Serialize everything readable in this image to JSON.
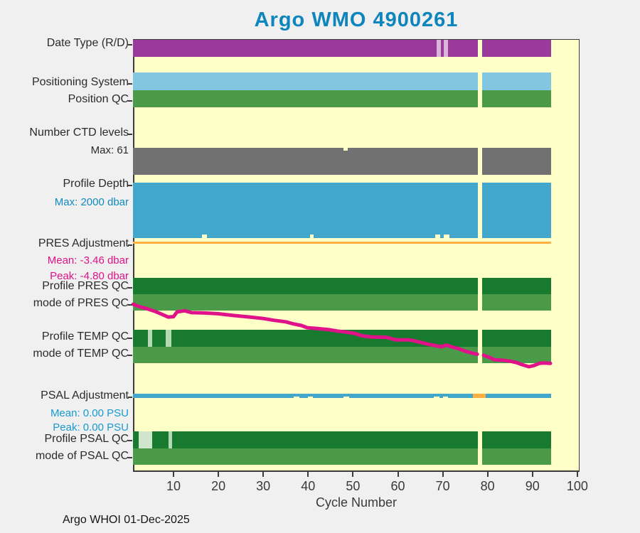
{
  "title": "Argo WMO 4900261",
  "footer": "Argo WHOI 01-Dec-2025",
  "palette": {
    "purple": "#9a3a9a",
    "light_purple": "#dcb4dc",
    "sky": "#83c6e2",
    "green": "#4a9a4a",
    "gray": "#717171",
    "depth_blue": "#42a7cb",
    "orange": "#fbb042",
    "dark_green": "#177a2e",
    "magenta": "#e0128a",
    "pale_green": "#b5d9b5",
    "paler_green": "#cfe6cd",
    "plot_bg": "#ffffc8",
    "fig_bg": "#f0f0f0",
    "title": "#0e86bd",
    "teal_text": "#128abf",
    "blue_text": "#189ad2",
    "magenta_text": "#e0128a",
    "dark_text": "#2b2b2b"
  },
  "chart_data": {
    "type": "heatmap",
    "description": "Argo float data-quality status timeline: colored status bars and adjustment lines per profile cycle",
    "title": "Argo WMO 4900261",
    "xlabel": "Cycle Number",
    "x_range": [
      1,
      100
    ],
    "x_ticks": [
      10,
      20,
      30,
      40,
      50,
      60,
      70,
      80,
      90,
      100
    ],
    "cycle_start": 1,
    "cycle_end": 94,
    "missing_cycle_gap": [
      77.8,
      78.75
    ],
    "grid": false,
    "legend": "none",
    "axis_labels": [
      {
        "id": "date_type",
        "text": "Date Type (R/D)",
        "color": "dark"
      },
      {
        "id": "positioning_system",
        "text": "Positioning System",
        "color": "dark"
      },
      {
        "id": "position_qc",
        "text": "Position QC",
        "color": "dark"
      },
      {
        "id": "ctd_levels",
        "text": "Number CTD levels",
        "color": "dark"
      },
      {
        "id": "ctd_max",
        "text": "Max: 61",
        "color": "dark"
      },
      {
        "id": "profile_depth",
        "text": "Profile Depth",
        "color": "dark"
      },
      {
        "id": "depth_max",
        "text": "Max: 2000 dbar",
        "color": "teal"
      },
      {
        "id": "pres_adj",
        "text": "PRES Adjustment",
        "color": "dark"
      },
      {
        "id": "pres_mean",
        "text": "Mean: -3.46 dbar",
        "color": "magenta"
      },
      {
        "id": "pres_peak",
        "text": "Peak: -4.80 dbar",
        "color": "magenta"
      },
      {
        "id": "profile_pres_qc",
        "text": "Profile PRES QC",
        "color": "dark"
      },
      {
        "id": "mode_pres_qc",
        "text": "mode of PRES QC",
        "color": "dark"
      },
      {
        "id": "profile_temp_qc",
        "text": "Profile TEMP QC",
        "color": "dark"
      },
      {
        "id": "mode_temp_qc",
        "text": "mode of TEMP QC",
        "color": "dark"
      },
      {
        "id": "psal_adj",
        "text": "PSAL Adjustment",
        "color": "dark"
      },
      {
        "id": "psal_mean",
        "text": "Mean: 0.00 PSU",
        "color": "blue"
      },
      {
        "id": "psal_peak",
        "text": "Peak: 0.00 PSU",
        "color": "blue"
      },
      {
        "id": "profile_psal_qc",
        "text": "Profile PSAL QC",
        "color": "dark"
      },
      {
        "id": "mode_psal_qc",
        "text": "mode of PSAL QC",
        "color": "dark"
      }
    ],
    "rows": [
      {
        "id": "date_type",
        "kind": "bar",
        "color": "purple",
        "segments": [
          [
            1,
            77.8
          ],
          [
            78.75,
            94.1
          ]
        ],
        "overlays": [
          {
            "c": [
              68.6,
              69.6
            ],
            "color": "light_purple"
          },
          {
            "c": [
              70.25,
              71.2
            ],
            "color": "light_purple"
          }
        ]
      },
      {
        "id": "positioning_system",
        "kind": "bar",
        "color": "sky",
        "segments": [
          [
            1,
            77.8
          ],
          [
            78.75,
            94.1
          ]
        ]
      },
      {
        "id": "position_qc",
        "kind": "bar",
        "color": "green",
        "segments": [
          [
            1,
            77.8
          ],
          [
            78.75,
            94.1
          ]
        ]
      },
      {
        "id": "ctd_levels",
        "kind": "bar",
        "color": "gray",
        "segments": [
          [
            1,
            77.8
          ],
          [
            78.75,
            94.1
          ]
        ],
        "overlays": [
          {
            "c": [
              47.9,
              48.9
            ],
            "color": "plot_bg",
            "anchor": "top",
            "h": 4
          }
        ]
      },
      {
        "id": "profile_depth",
        "kind": "bar",
        "color": "depth_blue",
        "segments": [
          [
            1,
            77.8
          ],
          [
            78.75,
            94.1
          ]
        ],
        "overlays": [
          {
            "c": [
              16.4,
              17.4
            ],
            "color": "plot_bg",
            "anchor": "bottom",
            "h": 5
          },
          {
            "c": [
              40.4,
              41.3
            ],
            "color": "plot_bg",
            "anchor": "bottom",
            "h": 5
          },
          {
            "c": [
              68.3,
              69.4
            ],
            "color": "plot_bg",
            "anchor": "bottom",
            "h": 5
          },
          {
            "c": [
              70.3,
              71.5
            ],
            "color": "plot_bg",
            "anchor": "bottom",
            "h": 5
          }
        ]
      },
      {
        "id": "pres_adjustment",
        "kind": "line",
        "color": "orange",
        "segments": [
          [
            1,
            94.1
          ]
        ]
      },
      {
        "id": "profile_pres_qc",
        "kind": "bar",
        "color": "dark_green",
        "segments": [
          [
            1,
            77.8
          ],
          [
            78.75,
            94.1
          ]
        ]
      },
      {
        "id": "mode_pres_qc",
        "kind": "bar",
        "color": "green",
        "segments": [
          [
            1,
            77.8
          ],
          [
            78.75,
            94.1
          ]
        ]
      },
      {
        "id": "profile_temp_qc",
        "kind": "bar",
        "color": "dark_green",
        "segments": [
          [
            1,
            77.8
          ],
          [
            78.75,
            94.1
          ]
        ],
        "overlays": [
          {
            "c": [
              4.3,
              5.3
            ],
            "color": "pale_green"
          },
          {
            "c": [
              8.3,
              9.5
            ],
            "color": "pale_green"
          }
        ]
      },
      {
        "id": "mode_temp_qc",
        "kind": "bar",
        "color": "green",
        "segments": [
          [
            1,
            77.8
          ],
          [
            78.75,
            94.1
          ]
        ]
      },
      {
        "id": "psal_adjustment",
        "kind": "line",
        "color": "depth_blue",
        "segments": [
          [
            1,
            76.7
          ],
          [
            79.6,
            94.1
          ]
        ],
        "overlays": [
          {
            "c": [
              76.7,
              79.6
            ],
            "color": "orange"
          },
          {
            "c": [
              36.8,
              38.1
            ],
            "color": "plot_bg",
            "anchor": "bottom",
            "h": 2
          },
          {
            "c": [
              40.0,
              41.1
            ],
            "color": "plot_bg",
            "anchor": "bottom",
            "h": 2
          },
          {
            "c": [
              47.9,
              49.1
            ],
            "color": "plot_bg",
            "anchor": "bottom",
            "h": 2
          },
          {
            "c": [
              68.0,
              69.2
            ],
            "color": "plot_bg",
            "anchor": "bottom",
            "h": 2
          },
          {
            "c": [
              70.0,
              71.2
            ],
            "color": "plot_bg",
            "anchor": "bottom",
            "h": 2
          }
        ]
      },
      {
        "id": "profile_psal_qc",
        "kind": "bar",
        "color": "dark_green",
        "segments": [
          [
            1,
            77.8
          ],
          [
            78.75,
            94.1
          ]
        ],
        "overlays": [
          {
            "c": [
              2.2,
              5.2
            ],
            "color": "paler_green"
          },
          {
            "c": [
              8.9,
              9.7
            ],
            "color": "pale_green"
          }
        ]
      },
      {
        "id": "mode_psal_qc",
        "kind": "bar",
        "color": "green",
        "segments": [
          [
            1,
            77.8
          ],
          [
            78.75,
            94.1
          ]
        ]
      }
    ],
    "pres_adjustment_trace": {
      "units": "dbar",
      "mean": -3.46,
      "peak": -4.8,
      "segments": [
        [
          [
            1,
            -3.1
          ],
          [
            2.2,
            -3.16
          ],
          [
            4,
            -3.22
          ],
          [
            6,
            -3.3
          ],
          [
            7.5,
            -3.38
          ],
          [
            8.8,
            -3.45
          ],
          [
            10,
            -3.44
          ],
          [
            10.8,
            -3.31
          ],
          [
            12.5,
            -3.28
          ],
          [
            14,
            -3.33
          ],
          [
            17,
            -3.34
          ],
          [
            20,
            -3.36
          ],
          [
            23.5,
            -3.41
          ],
          [
            27,
            -3.45
          ],
          [
            30,
            -3.49
          ],
          [
            32.5,
            -3.54
          ],
          [
            35,
            -3.58
          ],
          [
            36.5,
            -3.63
          ],
          [
            38.5,
            -3.68
          ],
          [
            39.8,
            -3.74
          ],
          [
            42,
            -3.76
          ],
          [
            44.5,
            -3.79
          ],
          [
            46.5,
            -3.83
          ],
          [
            48.5,
            -3.86
          ],
          [
            50.5,
            -3.9
          ],
          [
            52,
            -3.96
          ],
          [
            54,
            -3.99
          ],
          [
            57.5,
            -4.0
          ],
          [
            59.5,
            -4.07
          ],
          [
            62.5,
            -4.07
          ],
          [
            64.5,
            -4.12
          ],
          [
            66.5,
            -4.18
          ],
          [
            68.5,
            -4.23
          ],
          [
            69.7,
            -4.26
          ],
          [
            70.8,
            -4.21
          ],
          [
            72,
            -4.26
          ],
          [
            73.5,
            -4.31
          ],
          [
            74.8,
            -4.37
          ],
          [
            76.5,
            -4.43
          ],
          [
            77.7,
            -4.46
          ]
        ],
        [
          [
            79.1,
            -4.49
          ],
          [
            80.5,
            -4.55
          ],
          [
            81.5,
            -4.61
          ],
          [
            83,
            -4.62
          ],
          [
            85,
            -4.65
          ],
          [
            86.5,
            -4.69
          ],
          [
            87.8,
            -4.75
          ],
          [
            89.2,
            -4.8
          ],
          [
            90.3,
            -4.77
          ],
          [
            91.5,
            -4.71
          ],
          [
            92.5,
            -4.7
          ],
          [
            94,
            -4.71
          ]
        ]
      ]
    },
    "psal_adjustment_trace": {
      "units": "PSU",
      "mean": 0.0,
      "peak": 0.0,
      "constant_value": 0.0
    }
  }
}
